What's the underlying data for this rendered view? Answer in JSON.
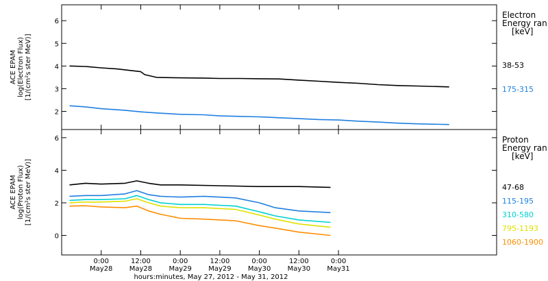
{
  "chart_data": [
    {
      "type": "line",
      "axis_title_lines": [
        "ACE EPAM",
        "log(Electron Flux)",
        "[1/(cm²s ster MeV)]"
      ],
      "ylim": [
        1.2,
        6.7
      ],
      "yticks": [
        2,
        3,
        4,
        5,
        6
      ],
      "legend_title_lines": [
        "Electron",
        "Energy ran",
        "[keV]"
      ],
      "series": [
        {
          "name": "38-53",
          "color": "#000000",
          "x": [
            -0.4,
            -0.2,
            0.0,
            0.2,
            0.5,
            0.55,
            0.7,
            1.0,
            1.3,
            1.5,
            1.75,
            2.0,
            2.25,
            2.5,
            2.75,
            3.0,
            3.25,
            3.5,
            3.75,
            4.0,
            4.4
          ],
          "y": [
            4.0,
            3.98,
            3.92,
            3.87,
            3.75,
            3.62,
            3.5,
            3.48,
            3.47,
            3.45,
            3.45,
            3.44,
            3.43,
            3.38,
            3.33,
            3.28,
            3.24,
            3.18,
            3.14,
            3.12,
            3.08
          ]
        },
        {
          "name": "175-315",
          "color": "#1f7fe0",
          "x": [
            -0.4,
            -0.2,
            0.0,
            0.3,
            0.5,
            0.7,
            1.0,
            1.3,
            1.5,
            1.75,
            2.0,
            2.25,
            2.5,
            2.75,
            3.0,
            3.25,
            3.5,
            3.75,
            4.0,
            4.4
          ],
          "y": [
            2.25,
            2.2,
            2.12,
            2.05,
            1.98,
            1.93,
            1.87,
            1.85,
            1.8,
            1.78,
            1.76,
            1.72,
            1.68,
            1.64,
            1.62,
            1.57,
            1.53,
            1.48,
            1.45,
            1.42
          ]
        }
      ]
    },
    {
      "type": "line",
      "axis_title_lines": [
        "ACE EPAM",
        "log(Proton Flux)",
        "[1/(cm²s ster MeV)]"
      ],
      "ylim": [
        -1.2,
        6.5
      ],
      "yticks": [
        0,
        2,
        4,
        6
      ],
      "legend_title_lines": [
        "Proton",
        "Energy ran",
        "[keV]"
      ],
      "xlabel": "hours:minutes, May 27, 2012 - May 31, 2012",
      "xlim": [
        -0.5,
        5.0
      ],
      "xticks": [
        {
          "x": 0.0,
          "time": "0:00",
          "date": "May28"
        },
        {
          "x": 0.5,
          "time": "12:00",
          "date": "May28"
        },
        {
          "x": 1.0,
          "time": "0:00",
          "date": "May29"
        },
        {
          "x": 1.5,
          "time": "12:00",
          "date": "May29"
        },
        {
          "x": 2.0,
          "time": "0:00",
          "date": "May30"
        },
        {
          "x": 2.5,
          "time": "12:00",
          "date": "May30"
        },
        {
          "x": 3.0,
          "time": "0:00",
          "date": "May31"
        }
      ],
      "series": [
        {
          "name": "47-68",
          "color": "#000000",
          "x": [
            -0.4,
            -0.2,
            0.0,
            0.3,
            0.45,
            0.6,
            0.75,
            1.0,
            1.5,
            2.0,
            2.5,
            2.9
          ],
          "y": [
            3.1,
            3.2,
            3.15,
            3.2,
            3.35,
            3.2,
            3.1,
            3.1,
            3.05,
            3.0,
            3.0,
            2.95
          ]
        },
        {
          "name": "115-195",
          "color": "#1f7fe0",
          "x": [
            -0.4,
            -0.2,
            0.0,
            0.3,
            0.45,
            0.6,
            0.75,
            1.0,
            1.3,
            1.5,
            1.7,
            2.0,
            2.2,
            2.5,
            2.9
          ],
          "y": [
            2.4,
            2.45,
            2.45,
            2.55,
            2.75,
            2.5,
            2.4,
            2.35,
            2.4,
            2.35,
            2.3,
            2.0,
            1.7,
            1.5,
            1.4
          ]
        },
        {
          "name": "310-580",
          "color": "#00d0d0",
          "x": [
            -0.4,
            -0.2,
            0.0,
            0.3,
            0.45,
            0.6,
            0.75,
            1.0,
            1.3,
            1.5,
            1.7,
            2.0,
            2.2,
            2.5,
            2.9
          ],
          "y": [
            2.15,
            2.2,
            2.2,
            2.25,
            2.45,
            2.2,
            2.0,
            1.9,
            1.9,
            1.85,
            1.8,
            1.45,
            1.2,
            0.95,
            0.8
          ]
        },
        {
          "name": "795-1193",
          "color": "#e0e000",
          "x": [
            -0.4,
            -0.2,
            0.0,
            0.3,
            0.45,
            0.6,
            0.75,
            1.0,
            1.3,
            1.5,
            1.7,
            2.0,
            2.2,
            2.5,
            2.9
          ],
          "y": [
            2.0,
            2.05,
            2.05,
            2.1,
            2.25,
            2.0,
            1.8,
            1.7,
            1.7,
            1.65,
            1.6,
            1.25,
            1.0,
            0.7,
            0.5
          ]
        },
        {
          "name": "1060-1900",
          "color": "#ff8c00",
          "x": [
            -0.4,
            -0.2,
            0.0,
            0.3,
            0.45,
            0.6,
            0.75,
            1.0,
            1.3,
            1.5,
            1.7,
            2.0,
            2.2,
            2.5,
            2.9
          ],
          "y": [
            1.8,
            1.82,
            1.75,
            1.7,
            1.8,
            1.5,
            1.3,
            1.05,
            1.0,
            0.95,
            0.9,
            0.6,
            0.45,
            0.2,
            0.0
          ]
        }
      ]
    }
  ]
}
